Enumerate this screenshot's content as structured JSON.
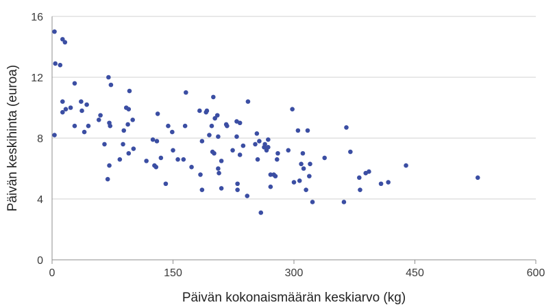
{
  "chart_data": {
    "type": "scatter",
    "title": "",
    "xlabel": "Päivän kokonaismäärän keskiarvo (kg)",
    "ylabel": "Päivän keskihinta (euroa)",
    "xlim": [
      0,
      600
    ],
    "ylim": [
      0,
      16
    ],
    "xticks": [
      0,
      150,
      300,
      450,
      600
    ],
    "yticks": [
      0,
      4,
      8,
      12,
      16
    ],
    "xtick_labels": [
      "0",
      "150",
      "300",
      "450",
      "600"
    ],
    "ytick_labels": [
      "0",
      "4",
      "8",
      "12",
      "16"
    ],
    "grid": "horizontal",
    "legend": "none",
    "marker_color": "#3b4ea3",
    "points": [
      [
        3,
        15.0
      ],
      [
        4,
        12.9
      ],
      [
        3,
        8.2
      ],
      [
        10,
        12.8
      ],
      [
        13,
        14.5
      ],
      [
        16,
        14.3
      ],
      [
        13,
        10.4
      ],
      [
        13,
        9.7
      ],
      [
        17,
        9.9
      ],
      [
        23,
        10.0
      ],
      [
        28,
        11.6
      ],
      [
        28,
        8.8
      ],
      [
        36,
        10.4
      ],
      [
        37,
        9.8
      ],
      [
        40,
        8.4
      ],
      [
        43,
        10.2
      ],
      [
        45,
        8.8
      ],
      [
        58,
        9.2
      ],
      [
        60,
        9.5
      ],
      [
        65,
        7.6
      ],
      [
        69,
        5.3
      ],
      [
        70,
        12.0
      ],
      [
        71,
        6.2
      ],
      [
        71,
        9.0
      ],
      [
        72,
        8.8
      ],
      [
        73,
        11.5
      ],
      [
        84,
        6.6
      ],
      [
        88,
        7.6
      ],
      [
        89,
        8.5
      ],
      [
        92,
        10.0
      ],
      [
        94,
        8.9
      ],
      [
        95,
        9.9
      ],
      [
        95,
        7.0
      ],
      [
        96,
        11.1
      ],
      [
        100,
        9.2
      ],
      [
        101,
        7.3
      ],
      [
        117,
        6.5
      ],
      [
        125,
        7.9
      ],
      [
        127,
        6.2
      ],
      [
        129,
        6.1
      ],
      [
        130,
        7.8
      ],
      [
        131,
        9.6
      ],
      [
        135,
        6.7
      ],
      [
        141,
        5.0
      ],
      [
        144,
        8.8
      ],
      [
        149,
        8.4
      ],
      [
        150,
        7.2
      ],
      [
        156,
        6.6
      ],
      [
        163,
        6.6
      ],
      [
        165,
        8.8
      ],
      [
        166,
        11.0
      ],
      [
        173,
        6.1
      ],
      [
        183,
        9.8
      ],
      [
        184,
        5.6
      ],
      [
        186,
        4.6
      ],
      [
        186,
        7.8
      ],
      [
        191,
        9.7
      ],
      [
        192,
        9.8
      ],
      [
        195,
        8.2
      ],
      [
        198,
        8.8
      ],
      [
        199,
        7.1
      ],
      [
        200,
        10.7
      ],
      [
        201,
        7.0
      ],
      [
        202,
        9.3
      ],
      [
        205,
        9.5
      ],
      [
        206,
        8.1
      ],
      [
        206,
        6.0
      ],
      [
        207,
        5.7
      ],
      [
        210,
        6.5
      ],
      [
        210,
        4.7
      ],
      [
        216,
        8.9
      ],
      [
        217,
        8.8
      ],
      [
        224,
        7.2
      ],
      [
        229,
        8.1
      ],
      [
        229,
        9.1
      ],
      [
        230,
        4.6
      ],
      [
        230,
        5.0
      ],
      [
        233,
        9.0
      ],
      [
        233,
        6.9
      ],
      [
        237,
        7.5
      ],
      [
        242,
        4.2
      ],
      [
        243,
        10.4
      ],
      [
        252,
        7.6
      ],
      [
        254,
        8.3
      ],
      [
        255,
        6.6
      ],
      [
        257,
        7.8
      ],
      [
        259,
        3.1
      ],
      [
        263,
        7.4
      ],
      [
        264,
        7.6
      ],
      [
        266,
        7.2
      ],
      [
        268,
        7.4
      ],
      [
        268,
        7.9
      ],
      [
        271,
        4.8
      ],
      [
        271,
        5.6
      ],
      [
        275,
        5.6
      ],
      [
        277,
        5.5
      ],
      [
        279,
        6.6
      ],
      [
        280,
        7.0
      ],
      [
        293,
        7.2
      ],
      [
        298,
        9.9
      ],
      [
        300,
        5.1
      ],
      [
        305,
        8.5
      ],
      [
        307,
        5.2
      ],
      [
        309,
        6.3
      ],
      [
        311,
        7.0
      ],
      [
        312,
        6.0
      ],
      [
        315,
        4.6
      ],
      [
        317,
        8.5
      ],
      [
        319,
        5.5
      ],
      [
        320,
        6.3
      ],
      [
        323,
        3.8
      ],
      [
        338,
        6.7
      ],
      [
        362,
        3.8
      ],
      [
        365,
        8.7
      ],
      [
        370,
        7.1
      ],
      [
        381,
        5.4
      ],
      [
        382,
        4.6
      ],
      [
        389,
        5.7
      ],
      [
        393,
        5.8
      ],
      [
        408,
        5.0
      ],
      [
        417,
        5.1
      ],
      [
        439,
        6.2
      ],
      [
        528,
        5.4
      ]
    ]
  }
}
